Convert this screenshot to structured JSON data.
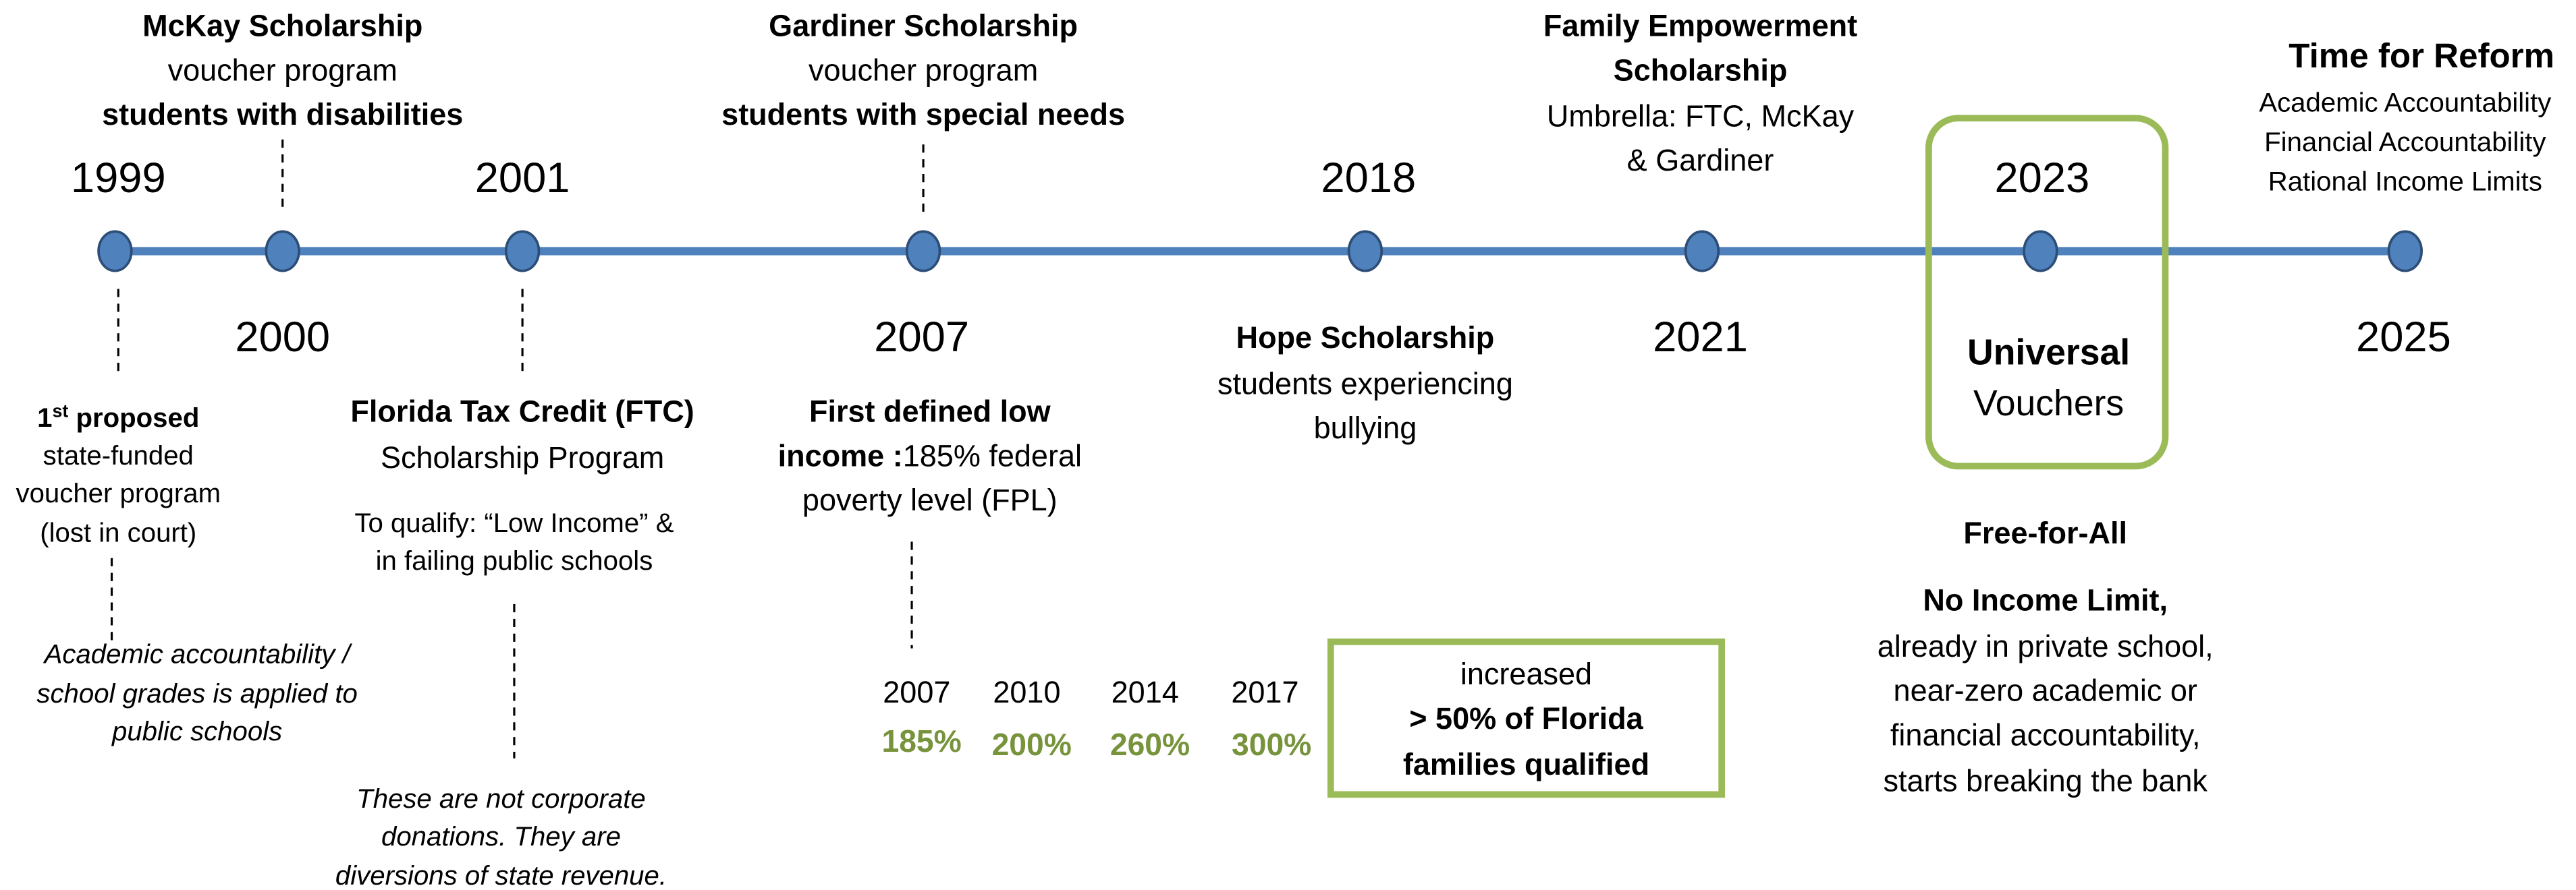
{
  "years": [
    "1999",
    "2000",
    "2001",
    "2007",
    "2018",
    "2021",
    "2023",
    "2025"
  ],
  "mckay": {
    "title": "McKay Scholarship",
    "lines": [
      "voucher program",
      "students with disabilities"
    ]
  },
  "gardiner": {
    "title": "Gardiner Scholarship",
    "lines": [
      "voucher program",
      "students with special needs"
    ]
  },
  "fes": {
    "title": [
      "Family Empowerment",
      "Scholarship"
    ],
    "lines": [
      "Umbrella: FTC, McKay",
      "& Gardiner"
    ]
  },
  "reform": {
    "title": "Time for Reform",
    "lines": [
      "Academic Accountability",
      "Financial Accountability",
      "Rational Income Limits"
    ]
  },
  "first_proposed": {
    "title": "1",
    "superscript": "st",
    "title_rest": " proposed",
    "lines": [
      "state-funded",
      "voucher program",
      "(lost in court)"
    ],
    "note": [
      "Academic accountability /",
      "school grades is applied to",
      "public schools"
    ]
  },
  "ftc": {
    "title": "Florida Tax Credit (FTC)",
    "lines": [
      "Scholarship Program"
    ],
    "qualify": [
      "To qualify: “Low Income” &",
      "in failing public schools"
    ],
    "note": [
      "These are not corporate",
      "donations. They are",
      "diversions of state revenue."
    ]
  },
  "low_income": {
    "title": [
      "First defined low",
      "income :"
    ],
    "lines": [
      "185% federal",
      "poverty level (FPL)"
    ]
  },
  "fpl": {
    "years": [
      "2007",
      "2010",
      "2014",
      "2017"
    ],
    "levels": [
      "185%",
      "200%",
      "260%",
      "300%"
    ]
  },
  "hope": {
    "title": "Hope Scholarship",
    "lines": [
      "students experiencing",
      "bullying"
    ]
  },
  "increased": {
    "lines": [
      "increased"
    ],
    "bold": [
      "> 50% of Florida",
      "families qualified"
    ]
  },
  "universal": {
    "title": "Universal",
    "lines": [
      "Vouchers"
    ]
  },
  "free": {
    "title": "Free-for-All",
    "subtitle": "No Income Limit,",
    "lines": [
      "already in private school,",
      "near-zero academic or",
      "financial accountability,",
      "starts breaking the bank"
    ]
  }
}
